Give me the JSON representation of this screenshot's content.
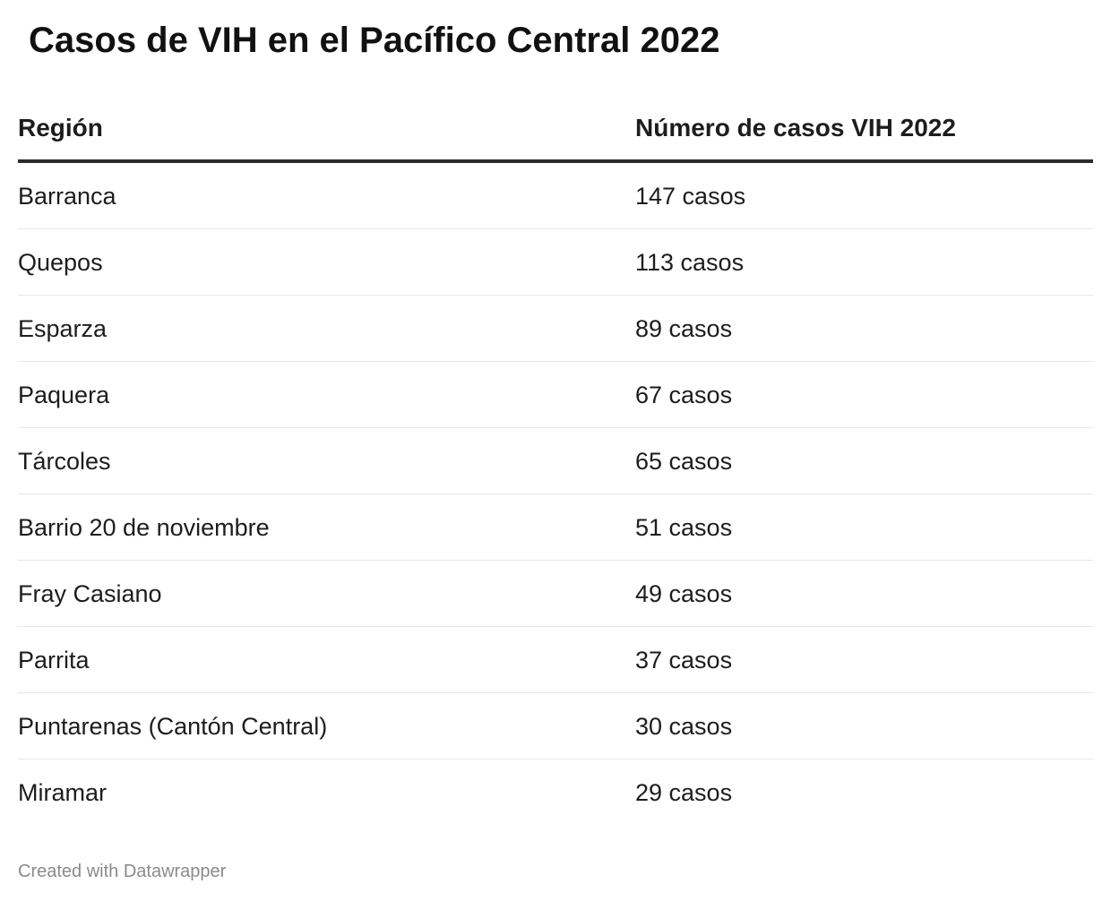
{
  "title": "Casos de VIH en el Pacífico Central 2022",
  "credit": "Created with Datawrapper",
  "chart_data": {
    "type": "table",
    "title": "Casos de VIH en el Pacífico Central 2022",
    "columns": [
      "Región",
      "Número de casos VIH 2022"
    ],
    "rows": [
      {
        "region": "Barranca",
        "cases_label": "147 casos",
        "cases": 147
      },
      {
        "region": "Quepos",
        "cases_label": "113 casos",
        "cases": 113
      },
      {
        "region": "Esparza",
        "cases_label": "89 casos",
        "cases": 89
      },
      {
        "region": "Paquera",
        "cases_label": "67 casos",
        "cases": 67
      },
      {
        "region": "Tárcoles",
        "cases_label": "65 casos",
        "cases": 65
      },
      {
        "region": "Barrio 20 de noviembre",
        "cases_label": "51 casos",
        "cases": 51
      },
      {
        "region": "Fray Casiano",
        "cases_label": "49 casos",
        "cases": 49
      },
      {
        "region": "Parrita",
        "cases_label": "37 casos",
        "cases": 37
      },
      {
        "region": "Puntarenas (Cantón Central)",
        "cases_label": "30 casos",
        "cases": 30
      },
      {
        "region": "Miramar",
        "cases_label": "29 casos",
        "cases": 29
      }
    ]
  }
}
